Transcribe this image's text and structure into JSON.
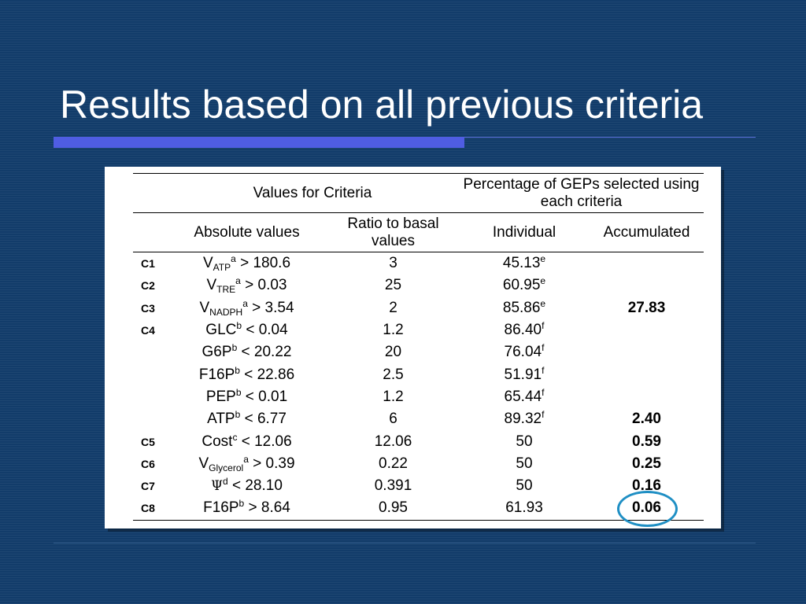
{
  "slide": {
    "title": "Results based on all previous criteria",
    "colors": {
      "background": "#123c6a",
      "accent_bar": "#4f5de3",
      "circle": "#1f8fc4"
    }
  },
  "table": {
    "header": {
      "values_for_criteria": "Values for Criteria",
      "percentage": "Percentage of GEPs selected using each criteria",
      "absolute_values": "Absolute values",
      "ratio_to_basal": "Ratio to basal values",
      "individual": "Individual",
      "accumulated": "Accumulated"
    },
    "rows": [
      {
        "id": "C1",
        "var": "V",
        "sub": "ATP",
        "sup": "a",
        "op": " > 180.6",
        "ratio": "3",
        "individual": "45.13",
        "ind_sup": "e",
        "accumulated": ""
      },
      {
        "id": "C2",
        "var": "V",
        "sub": "TRE",
        "sup": "a",
        "op": " > 0.03",
        "ratio": "25",
        "individual": "60.95",
        "ind_sup": "e",
        "accumulated": ""
      },
      {
        "id": "C3",
        "var": "V",
        "sub": "NADPH",
        "sup": "a",
        "op": " > 3.54",
        "ratio": "2",
        "individual": "85.86",
        "ind_sup": "e",
        "accumulated": "27.83"
      },
      {
        "id": "C4",
        "var": "GLC",
        "sub": "",
        "sup": "b",
        "op": " < 0.04",
        "ratio": "1.2",
        "individual": "86.40",
        "ind_sup": "f",
        "accumulated": ""
      },
      {
        "id": "",
        "var": "G6P",
        "sub": "",
        "sup": "b",
        "op": " < 20.22",
        "ratio": "20",
        "individual": "76.04",
        "ind_sup": "f",
        "accumulated": ""
      },
      {
        "id": "",
        "var": "F16P",
        "sub": "",
        "sup": "b",
        "op": " < 22.86",
        "ratio": "2.5",
        "individual": "51.91",
        "ind_sup": "f",
        "accumulated": ""
      },
      {
        "id": "",
        "var": "PEP",
        "sub": "",
        "sup": "b",
        "op": " < 0.01",
        "ratio": "1.2",
        "individual": "65.44",
        "ind_sup": "f",
        "accumulated": ""
      },
      {
        "id": "",
        "var": "ATP",
        "sub": "",
        "sup": "b",
        "op": " < 6.77",
        "ratio": "6",
        "individual": "89.32",
        "ind_sup": "f",
        "accumulated": "2.40"
      },
      {
        "id": "C5",
        "var": "Cost",
        "sub": "",
        "sup": "c",
        "op": " < 12.06",
        "ratio": "12.06",
        "individual": "50",
        "ind_sup": "",
        "accumulated": "0.59"
      },
      {
        "id": "C6",
        "var": "V",
        "sub": "Glycerol",
        "sup": "a",
        "op": " > 0.39",
        "ratio": "0.22",
        "individual": "50",
        "ind_sup": "",
        "accumulated": "0.25"
      },
      {
        "id": "C7",
        "var": "Ψ",
        "sub": "",
        "sup": "d",
        "op": " <  28.10",
        "ratio": "0.391",
        "individual": "50",
        "ind_sup": "",
        "accumulated": "0.16",
        "psi": true
      },
      {
        "id": "C8",
        "var": "F16P",
        "sub": "",
        "sup": "b",
        "op": " > 8.64",
        "ratio": "0.95",
        "individual": "61.93",
        "ind_sup": "",
        "accumulated": "0.06"
      }
    ]
  }
}
